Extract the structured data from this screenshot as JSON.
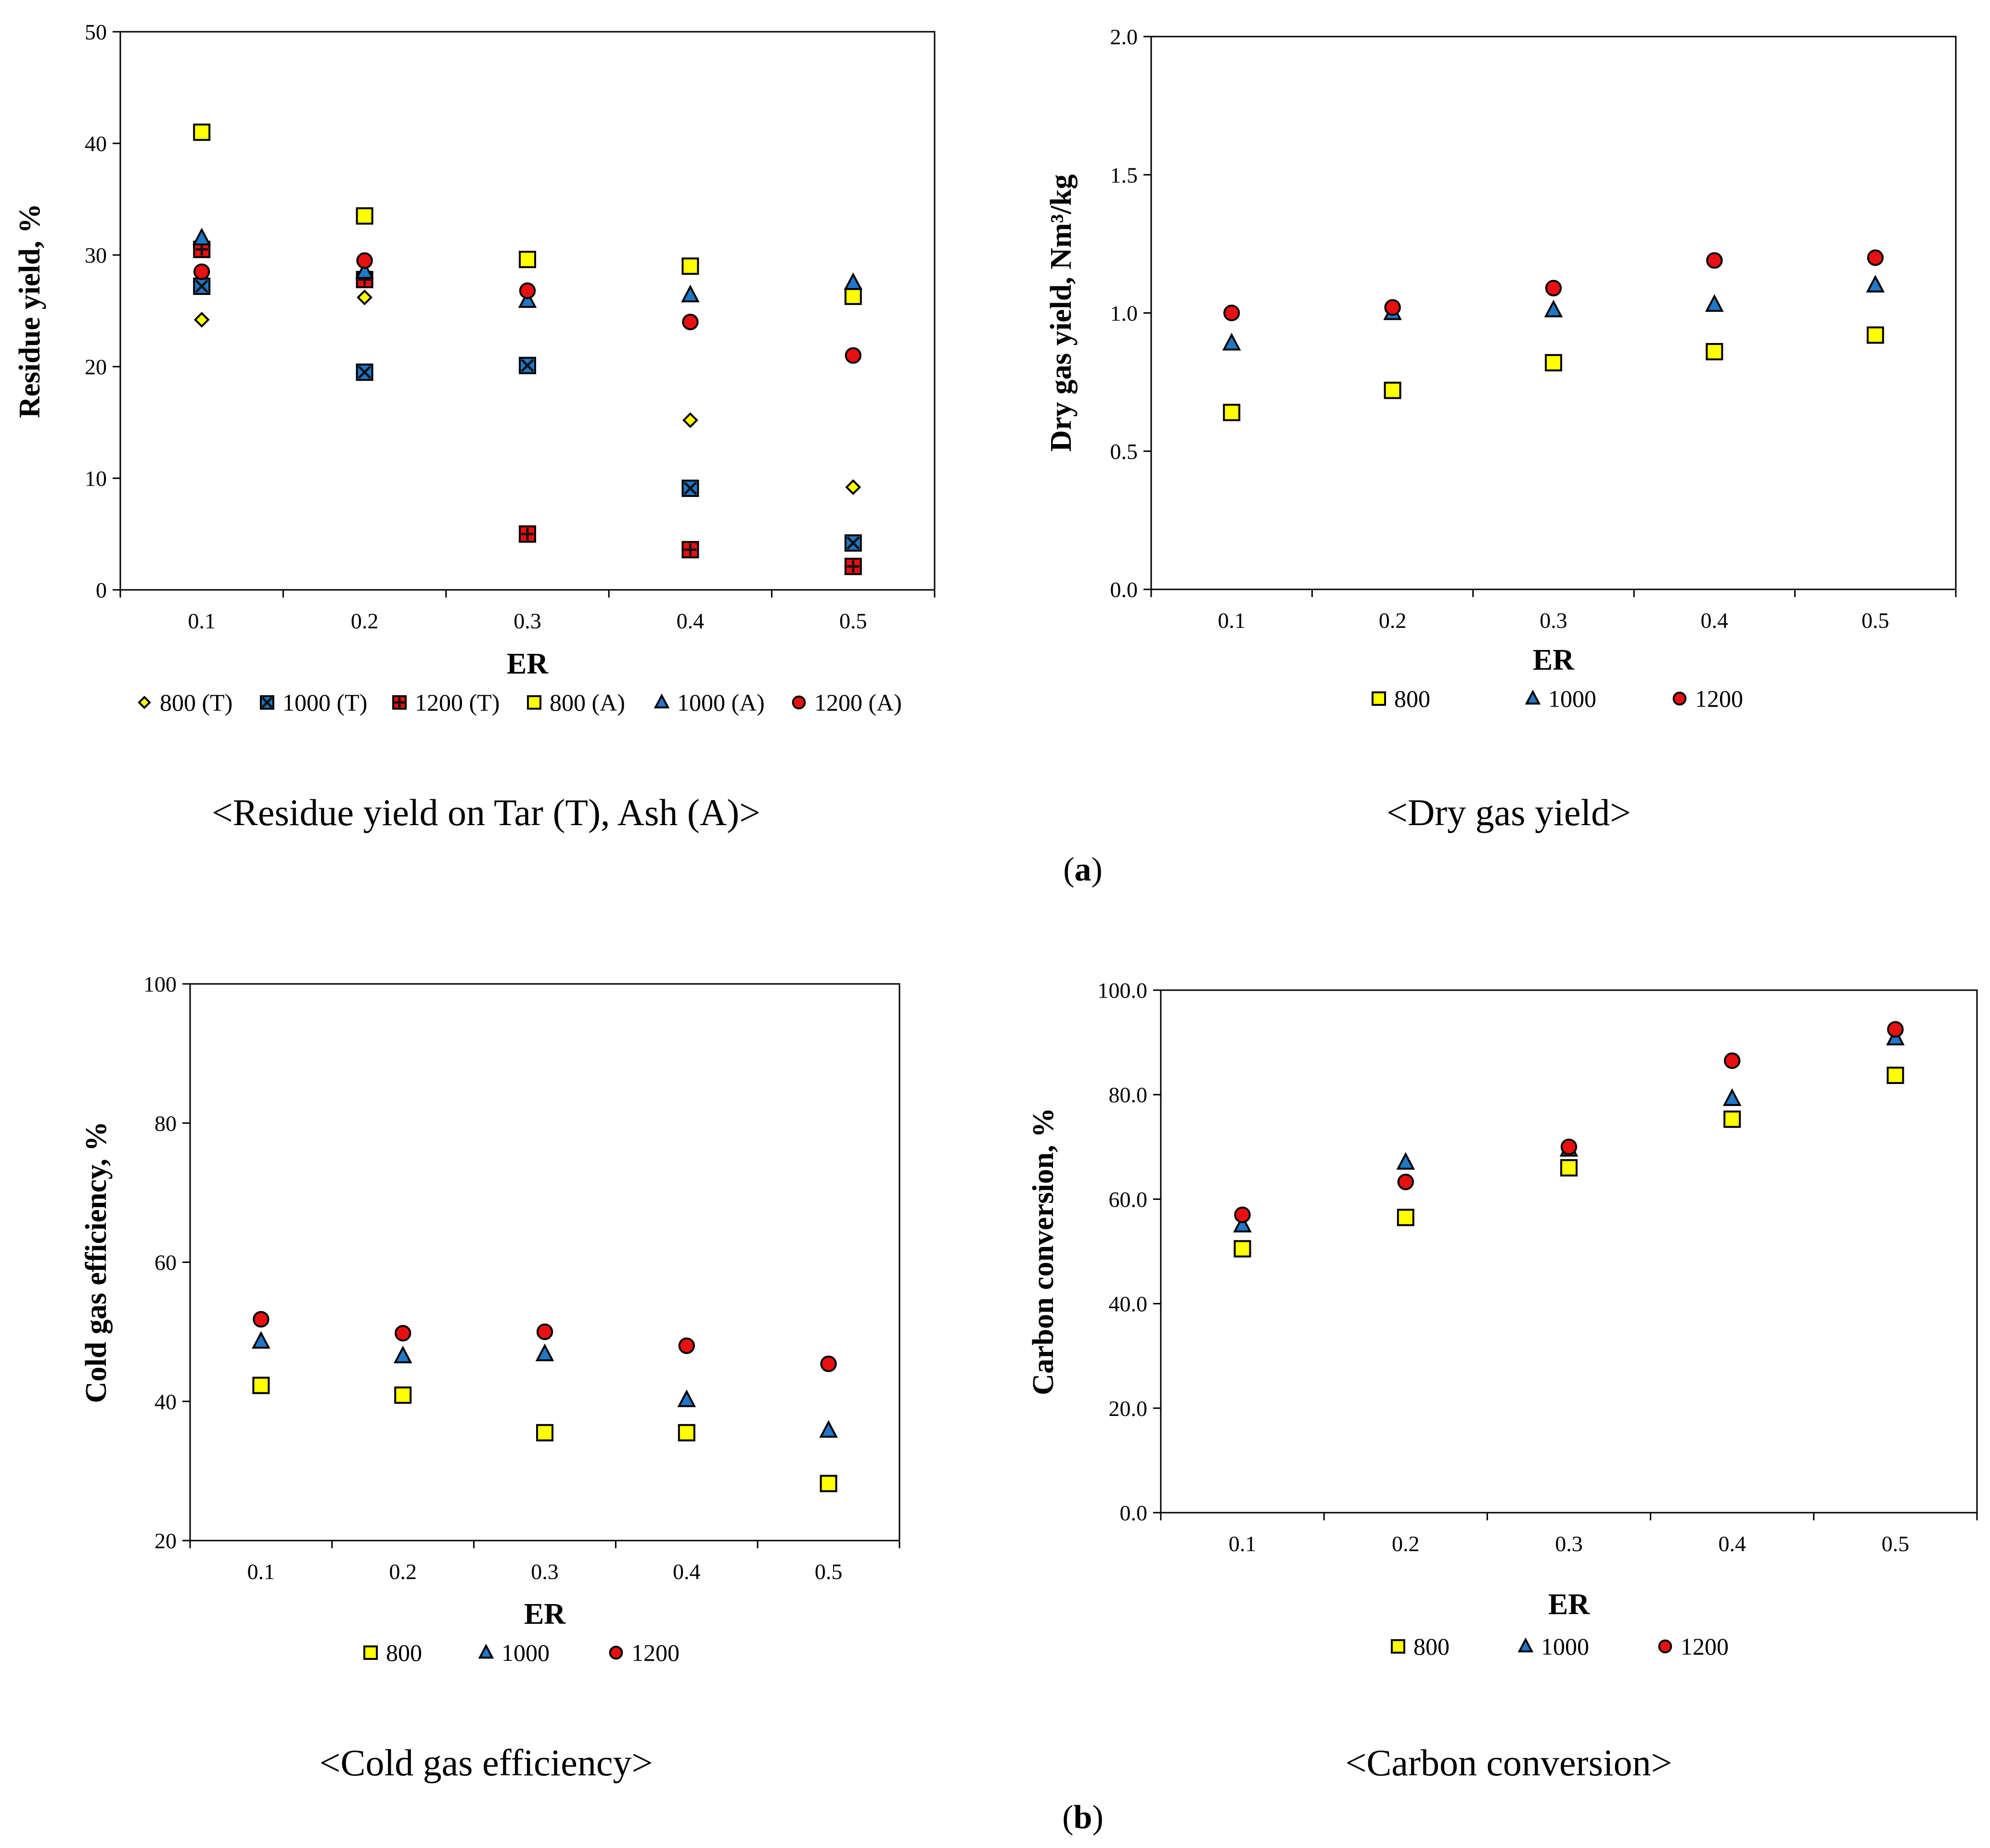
{
  "figure": {
    "panel_labels": [
      {
        "pre": "(",
        "letter": "a",
        "post": ")"
      },
      {
        "pre": "(",
        "letter": "b",
        "post": ")"
      }
    ]
  },
  "colors": {
    "800": "#ffff00",
    "1000": "#1f78c8",
    "1200": "#e81010",
    "stroke": "#000000"
  },
  "chart_data": [
    {
      "id": "residue",
      "type": "scatter",
      "caption": "<Residue yield on Tar (T), Ash (A)>",
      "xlabel": "ER",
      "ylabel": "Residue yield, %",
      "x_categories": [
        "0.1",
        "0.2",
        "0.3",
        "0.4",
        "0.5"
      ],
      "ylim": [
        0,
        50
      ],
      "yticks": [
        "0",
        "10",
        "20",
        "30",
        "40",
        "50"
      ],
      "series": [
        {
          "name": "800 (T)",
          "marker": "diamond",
          "color": "800",
          "values": [
            24.2,
            26.2,
            null,
            15.2,
            9.2
          ]
        },
        {
          "name": "1000 (T)",
          "marker": "square-x",
          "color": "1000",
          "values": [
            27.2,
            19.5,
            20.1,
            9.1,
            4.2
          ]
        },
        {
          "name": "1200 (T)",
          "marker": "square-plus",
          "color": "1200",
          "values": [
            30.5,
            27.8,
            5.0,
            3.6,
            2.1
          ]
        },
        {
          "name": "800 (A)",
          "marker": "square",
          "color": "800",
          "values": [
            41.0,
            33.5,
            29.6,
            29.0,
            26.3
          ]
        },
        {
          "name": "1000 (A)",
          "marker": "triangle",
          "color": "1000",
          "values": [
            31.5,
            28.5,
            25.9,
            26.4,
            27.5
          ]
        },
        {
          "name": "1200 (A)",
          "marker": "circle",
          "color": "1200",
          "values": [
            28.5,
            29.5,
            26.8,
            24.0,
            21.0
          ]
        }
      ]
    },
    {
      "id": "drygas",
      "type": "scatter",
      "caption": "<Dry gas yield>",
      "xlabel": "ER",
      "ylabel": "Dry gas yield, Nm³/kg",
      "x_categories": [
        "0.1",
        "0.2",
        "0.3",
        "0.4",
        "0.5"
      ],
      "ylim": [
        0,
        2
      ],
      "yticks": [
        "0.0",
        "0.5",
        "1.0",
        "1.5",
        "2.0"
      ],
      "series": [
        {
          "name": "800",
          "marker": "square",
          "color": "800",
          "values": [
            0.64,
            0.72,
            0.82,
            0.86,
            0.92
          ]
        },
        {
          "name": "1000",
          "marker": "triangle",
          "color": "1000",
          "values": [
            0.89,
            1.0,
            1.01,
            1.03,
            1.1
          ]
        },
        {
          "name": "1200",
          "marker": "circle",
          "color": "1200",
          "values": [
            1.0,
            1.02,
            1.09,
            1.19,
            1.2
          ]
        }
      ]
    },
    {
      "id": "cge",
      "type": "scatter",
      "caption": "<Cold gas efficiency>",
      "xlabel": "ER",
      "ylabel": "Cold gas efficiency, %",
      "x_categories": [
        "0.1",
        "0.2",
        "0.3",
        "0.4",
        "0.5"
      ],
      "ylim": [
        20,
        100
      ],
      "yticks": [
        "20",
        "40",
        "60",
        "80",
        "100"
      ],
      "series": [
        {
          "name": "800",
          "marker": "square",
          "color": "800",
          "values": [
            42.3,
            40.9,
            35.5,
            35.5,
            28.2
          ]
        },
        {
          "name": "1000",
          "marker": "triangle",
          "color": "1000",
          "values": [
            48.6,
            46.5,
            46.8,
            40.2,
            35.8
          ]
        },
        {
          "name": "1200",
          "marker": "circle",
          "color": "1200",
          "values": [
            51.8,
            49.8,
            50.0,
            48.0,
            45.4
          ]
        }
      ]
    },
    {
      "id": "carbon",
      "type": "scatter",
      "caption": "<Carbon conversion>",
      "xlabel": "ER",
      "ylabel": "Carbon conversion, %",
      "x_categories": [
        "0.1",
        "0.2",
        "0.3",
        "0.4",
        "0.5"
      ],
      "ylim": [
        0,
        100
      ],
      "yticks": [
        "0.0",
        "20.0",
        "40.0",
        "60.0",
        "80.0",
        "100.0"
      ],
      "series": [
        {
          "name": "800",
          "marker": "square",
          "color": "800",
          "values": [
            50.5,
            56.5,
            66.0,
            75.3,
            83.7
          ]
        },
        {
          "name": "1000",
          "marker": "triangle",
          "color": "1000",
          "values": [
            55.0,
            67.0,
            69.5,
            79.2,
            90.8
          ]
        },
        {
          "name": "1200",
          "marker": "circle",
          "color": "1200",
          "values": [
            57.0,
            63.3,
            70.0,
            86.5,
            92.5
          ]
        }
      ]
    }
  ]
}
